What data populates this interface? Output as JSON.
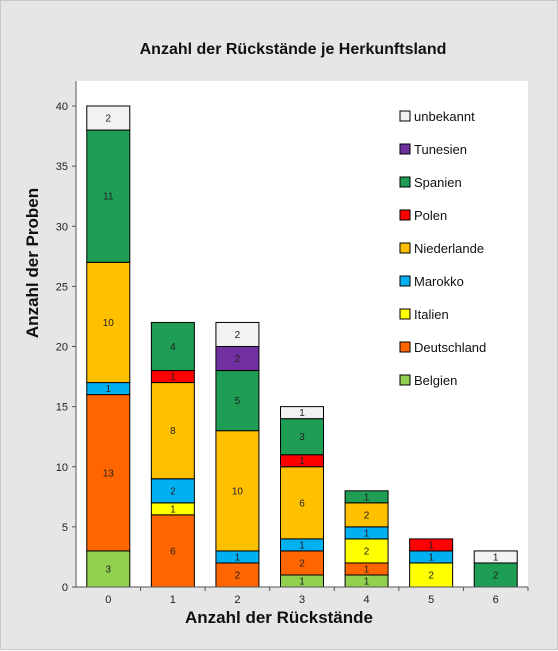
{
  "chart_data": {
    "type": "bar",
    "stacked": true,
    "title": "Anzahl der Rückstände je Herkunftsland",
    "xlabel": "Anzahl der Rückstände",
    "ylabel": "Anzahl der Proben",
    "categories": [
      "0",
      "1",
      "2",
      "3",
      "4",
      "5",
      "6"
    ],
    "ylim": [
      0,
      40
    ],
    "yticks": [
      0,
      5,
      10,
      15,
      20,
      25,
      30,
      35,
      40
    ],
    "grid": false,
    "legend_position": "top-right",
    "series": [
      {
        "name": "Belgien",
        "color": "#92d050",
        "values": [
          3,
          0,
          0,
          1,
          1,
          0,
          0
        ]
      },
      {
        "name": "Deutschland",
        "color": "#ff6600",
        "values": [
          13,
          6,
          2,
          2,
          1,
          0,
          0
        ]
      },
      {
        "name": "Italien",
        "color": "#ffff00",
        "values": [
          0,
          1,
          0,
          0,
          2,
          2,
          0
        ]
      },
      {
        "name": "Marokko",
        "color": "#00b0f0",
        "values": [
          1,
          2,
          1,
          1,
          1,
          1,
          0
        ]
      },
      {
        "name": "Niederlande",
        "color": "#ffc000",
        "values": [
          10,
          8,
          10,
          6,
          2,
          0,
          0
        ]
      },
      {
        "name": "Polen",
        "color": "#ff0000",
        "values": [
          0,
          1,
          0,
          1,
          0,
          1,
          0
        ]
      },
      {
        "name": "Spanien",
        "color": "#1f9d55",
        "values": [
          11,
          4,
          5,
          3,
          1,
          0,
          2
        ]
      },
      {
        "name": "Tunesien",
        "color": "#7030a0",
        "values": [
          0,
          0,
          2,
          0,
          0,
          0,
          0
        ]
      },
      {
        "name": "unbekannt",
        "color": "#f2f2f2",
        "values": [
          2,
          0,
          2,
          1,
          0,
          0,
          1
        ]
      }
    ]
  }
}
